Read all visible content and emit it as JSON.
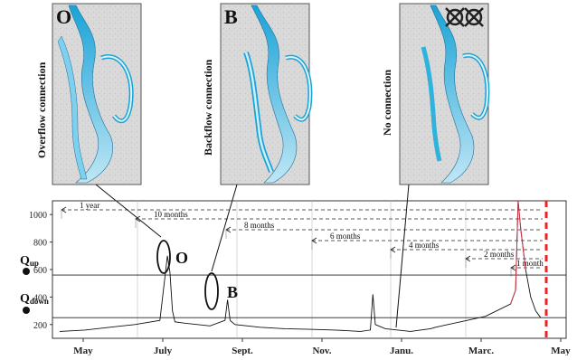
{
  "panels": [
    {
      "tag": "O",
      "caption": "Overflow connection"
    },
    {
      "tag": "B",
      "caption": "Backflow connection"
    },
    {
      "tag": "",
      "caption": "No connection"
    }
  ],
  "callouts": {
    "o_label": "O",
    "b_label": "B"
  },
  "thresholds": {
    "q_up": "Q",
    "q_up_sub": "up",
    "q_down": "Q",
    "q_down_sub": "down"
  },
  "durations": [
    {
      "label": "1 year"
    },
    {
      "label": "10 months"
    },
    {
      "label": "8 months"
    },
    {
      "label": "6 months"
    },
    {
      "label": "4 months"
    },
    {
      "label": "2 months"
    },
    {
      "label": "1 month"
    }
  ],
  "colors": {
    "water": "#2fb3dc",
    "flood_marker": "#e8242b",
    "peak_line": "#cc3344"
  },
  "chart_data": {
    "type": "line",
    "title": "",
    "xlabel": "",
    "ylabel": "",
    "ylim": [
      100,
      1100
    ],
    "yticks": [
      200,
      400,
      600,
      800,
      1000
    ],
    "xticks": [
      "May",
      "July",
      "Sept.",
      "Nov.",
      "Janu.",
      "Marc.",
      "May"
    ],
    "q_up_value": 560,
    "q_down_value": 250,
    "series": [
      {
        "x": [
          0,
          0.05,
          0.1,
          0.15,
          0.2,
          0.215,
          0.22,
          0.225,
          0.23,
          0.25,
          0.3,
          0.33,
          0.335,
          0.34,
          0.35,
          0.4,
          0.45,
          0.5,
          0.55,
          0.6,
          0.62,
          0.625,
          0.63,
          0.65,
          0.7,
          0.72,
          0.74,
          0.75,
          0.8,
          0.85,
          0.9,
          0.91,
          0.915,
          0.92,
          0.93,
          0.94,
          0.95,
          0.96
        ],
        "y": [
          150,
          160,
          180,
          200,
          230,
          700,
          580,
          300,
          220,
          210,
          190,
          230,
          380,
          230,
          200,
          180,
          170,
          165,
          160,
          150,
          160,
          420,
          200,
          170,
          150,
          160,
          170,
          180,
          220,
          260,
          350,
          450,
          1100,
          900,
          600,
          400,
          300,
          250
        ]
      }
    ]
  }
}
